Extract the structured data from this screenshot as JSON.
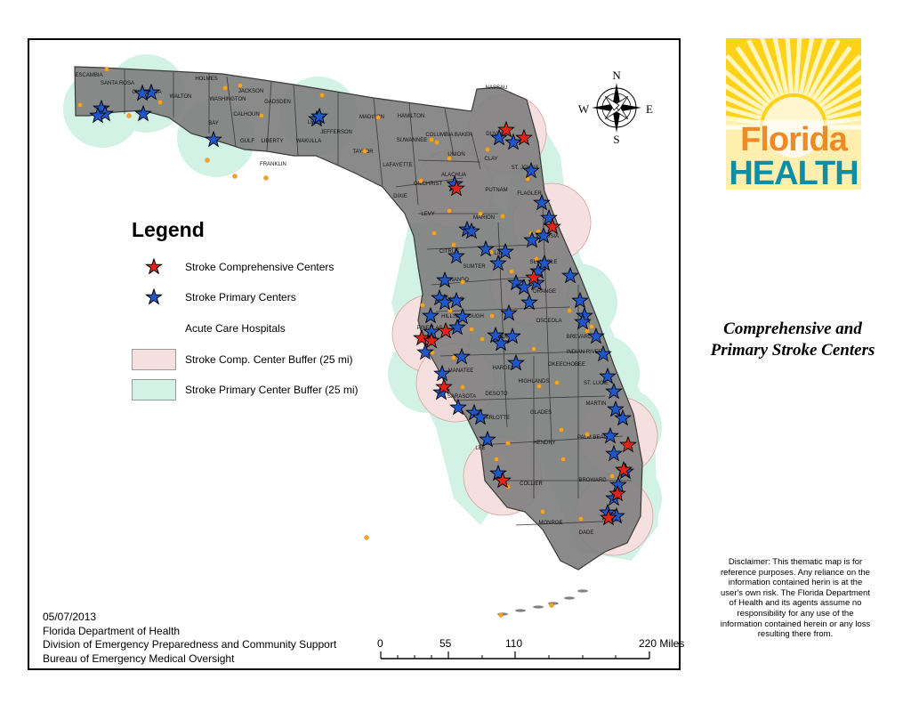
{
  "map": {
    "counties": [
      "ESCAMBIA",
      "SANTA ROSA",
      "OKALOOSA",
      "WALTON",
      "HOLMES",
      "WASHINGTON",
      "JACKSON",
      "BAY",
      "CALHOUN",
      "GADSDEN",
      "LEON",
      "JEFFERSON",
      "MADISON",
      "HAMILTON",
      "GULF",
      "LIBERTY",
      "WAKULLA",
      "TAYLOR",
      "SUWANNEE",
      "FRANKLIN",
      "LAFAYETTE",
      "COLUMBIA",
      "BAKER",
      "NASSAU",
      "DUVAL",
      "UNION",
      "CLAY",
      "ST. JOHNS",
      "ALACHUA",
      "GILCHRIST",
      "DIXIE",
      "PUTNAM",
      "FLAGLER",
      "LEVY",
      "MARION",
      "VOLUSIA",
      "CITRUS",
      "SUMTER",
      "LAKE",
      "SEMINOLE",
      "HERNANDO",
      "PASCO",
      "ORANGE",
      "HILLSBOROUGH",
      "OSCEOLA",
      "BREVARD",
      "PINELLAS",
      "POLK",
      "INDIAN RIVER",
      "MANATEE",
      "HARDEE",
      "OKEECHOBEE",
      "ST. LUCIE",
      "SARASOTA",
      "DESOTO",
      "HIGHLANDS",
      "MARTIN",
      "CHARLOTTE",
      "GLADES",
      "PALM BEACH",
      "LEE",
      "HENDRY",
      "COLLIER",
      "BROWARD",
      "MONROE",
      "DADE"
    ]
  },
  "compass": {
    "n": "N",
    "s": "S",
    "e": "E",
    "w": "W"
  },
  "legend": {
    "title": "Legend",
    "comprehensive": "Stroke Comprehensive Centers",
    "primary": "Stroke Primary Centers",
    "hospitals": "Acute Care Hospitals",
    "comp_buffer": "Stroke Comp. Center Buffer (25 mi)",
    "primary_buffer": "Stroke Primary Center Buffer (25 mi)"
  },
  "colors": {
    "land": "#808080",
    "county_line": "#3a3a3a",
    "comp_buffer": "#f6dfdf",
    "primary_buffer": "#d2f2e6",
    "comprehensive_star": "#e2231a",
    "primary_star": "#1f56c8",
    "hospital": "#f7a51c"
  },
  "footer": {
    "date": "05/07/2013",
    "org": "Florida Department of Health",
    "division": "Division of Emergency Preparedness and Community Support",
    "bureau": "Bureau of Emergency Medical Oversight"
  },
  "scale": {
    "l0": "0",
    "l55": "55",
    "l110": "110",
    "l220": "220 Miles"
  },
  "title": {
    "line1": "Comprehensive and",
    "line2": "Primary Stroke Centers"
  },
  "logo": {
    "word1": "Florida",
    "word2": "HEALTH"
  },
  "disclaimer": "Disclaimer: This thematic map is for reference purposes. Any reliance on the information contained herin is at the user's own risk. The Florida Department of Health and its agents assume no responsibility for any use of the information contained herein or any loss resulting there from."
}
